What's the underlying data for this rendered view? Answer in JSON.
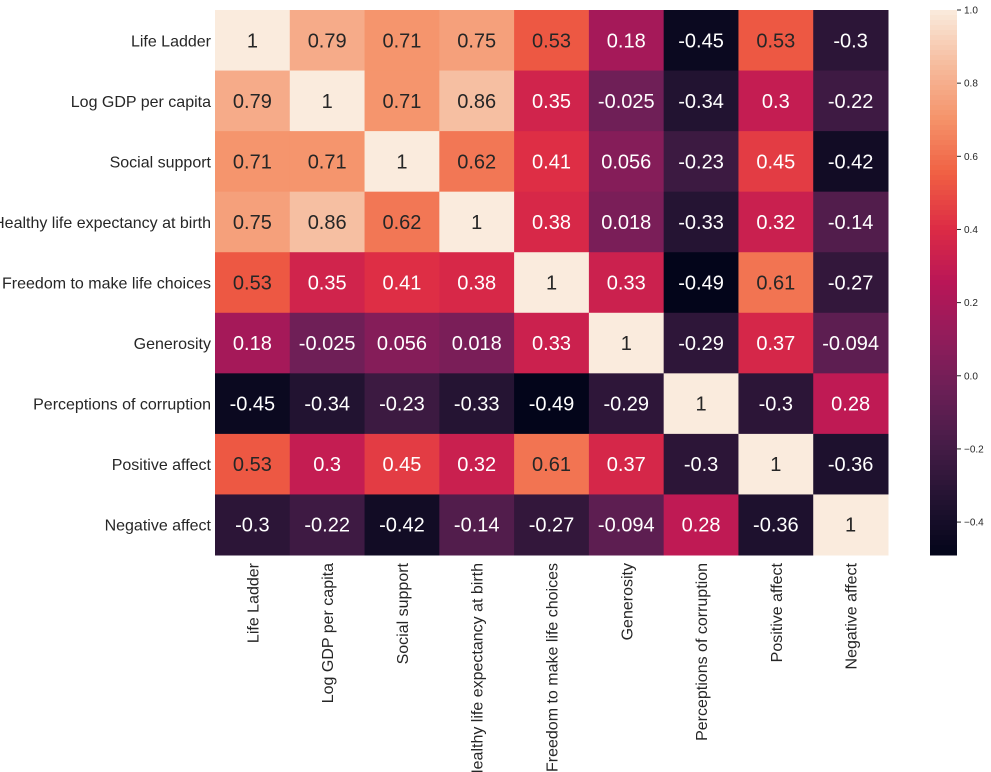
{
  "chart_data": {
    "type": "heatmap",
    "title": "",
    "xlabel": "",
    "ylabel": "",
    "labels": [
      "Life Ladder",
      "Log GDP per capita",
      "Social support",
      "Healthy life expectancy at birth",
      "Freedom to make life choices",
      "Generosity",
      "Perceptions of corruption",
      "Positive affect",
      "Negative affect"
    ],
    "values": [
      [
        1,
        0.79,
        0.71,
        0.75,
        0.53,
        0.18,
        -0.45,
        0.53,
        -0.3
      ],
      [
        0.79,
        1,
        0.71,
        0.86,
        0.35,
        -0.025,
        -0.34,
        0.3,
        -0.22
      ],
      [
        0.71,
        0.71,
        1,
        0.62,
        0.41,
        0.056,
        -0.23,
        0.45,
        -0.42
      ],
      [
        0.75,
        0.86,
        0.62,
        1,
        0.38,
        0.018,
        -0.33,
        0.32,
        -0.14
      ],
      [
        0.53,
        0.35,
        0.41,
        0.38,
        1,
        0.33,
        -0.49,
        0.61,
        -0.27
      ],
      [
        0.18,
        -0.025,
        0.056,
        0.018,
        0.33,
        1,
        -0.29,
        0.37,
        -0.094
      ],
      [
        -0.45,
        -0.34,
        -0.23,
        -0.33,
        -0.49,
        -0.29,
        1,
        -0.3,
        0.28
      ],
      [
        0.53,
        0.3,
        0.45,
        0.32,
        0.61,
        0.37,
        -0.3,
        1,
        -0.36
      ],
      [
        -0.3,
        -0.22,
        -0.42,
        -0.14,
        -0.27,
        -0.094,
        0.28,
        -0.36,
        1
      ]
    ],
    "colormap": "rocket",
    "vmin": -0.49,
    "vmax": 1,
    "colorbar_ticks": [
      "1.0",
      "0.8",
      "0.6",
      "0.4",
      "0.2",
      "0.0",
      "−0.2",
      "−0.4"
    ],
    "colorbar_tick_values": [
      1.0,
      0.8,
      0.6,
      0.4,
      0.2,
      0.0,
      -0.2,
      -0.4
    ],
    "annotated": true
  }
}
